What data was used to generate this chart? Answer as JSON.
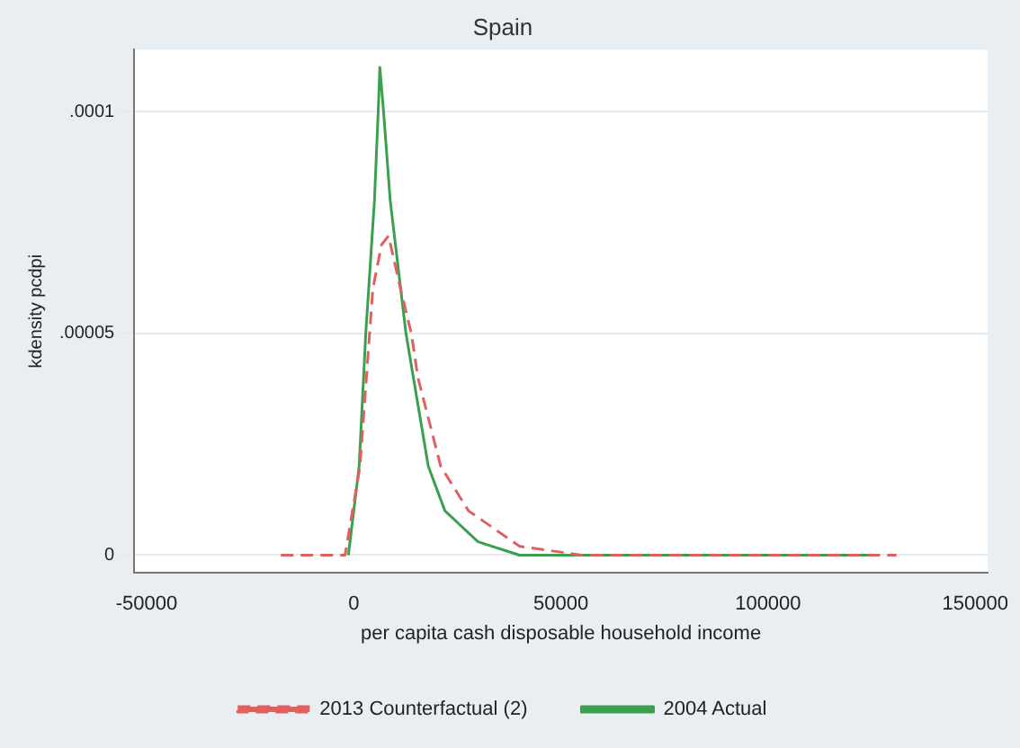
{
  "chart_data": {
    "type": "line",
    "title": "Spain",
    "xlabel": "per capita cash disposable household income",
    "ylabel": "kdensity pcdpi",
    "xlim": [
      -53000,
      153000
    ],
    "xticks": [
      -50000,
      0,
      50000,
      100000,
      150000
    ],
    "ylim": [
      -4e-06,
      0.000114
    ],
    "yticks": [
      0,
      {
        "value": 5e-05,
        "label": ".00005"
      },
      {
        "value": 0.0001,
        "label": ".0001"
      }
    ],
    "grid": "y",
    "legend": "bottom",
    "marker": "none",
    "series": [
      {
        "name": "2013 Counterfactual (2)",
        "color": "#e06060",
        "line_style": "dashed",
        "x": [
          -17600,
          -2100,
          1500,
          4600,
          6700,
          8400,
          11300,
          13900,
          15500,
          21000,
          27700,
          40000,
          55000,
          131000
        ],
        "values": [
          0,
          0,
          2e-05,
          6e-05,
          7e-05,
          7.2e-05,
          6e-05,
          5e-05,
          4e-05,
          2e-05,
          1e-05,
          2e-06,
          0,
          0
        ]
      },
      {
        "name": "2004 Actual",
        "color": "#3aa050",
        "line_style": "solid",
        "x": [
          -1300,
          1300,
          2900,
          5000,
          5900,
          6300,
          7200,
          8800,
          12600,
          18000,
          22000,
          30000,
          40000,
          125000
        ],
        "values": [
          0,
          2e-05,
          5e-05,
          8e-05,
          0.0001,
          0.00011,
          0.0001,
          8e-05,
          5e-05,
          2e-05,
          1e-05,
          3e-06,
          0,
          0
        ]
      }
    ]
  }
}
